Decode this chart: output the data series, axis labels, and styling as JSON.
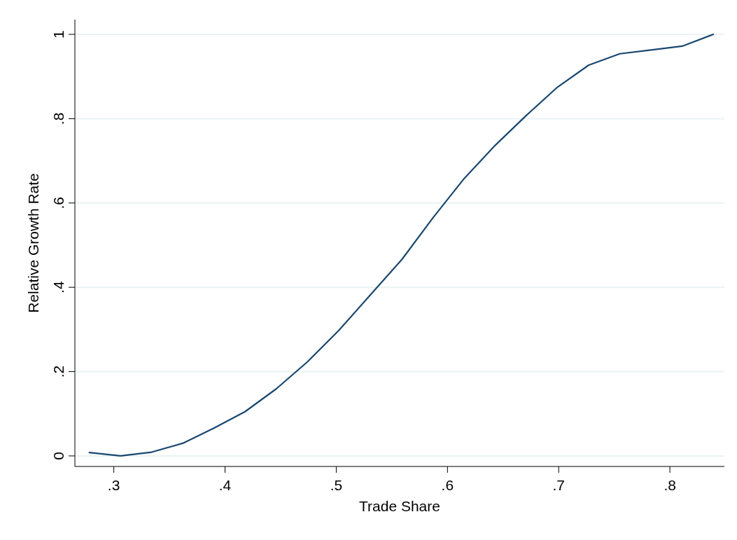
{
  "chart_data": {
    "type": "line",
    "xlabel": "Trade Share",
    "ylabel": "Relative Growth Rate",
    "x": [
      0.278,
      0.306,
      0.334,
      0.362,
      0.39,
      0.418,
      0.446,
      0.474,
      0.502,
      0.53,
      0.559,
      0.587,
      0.615,
      0.643,
      0.671,
      0.699,
      0.727,
      0.755,
      0.783,
      0.811,
      0.839
    ],
    "series": [
      {
        "color": "#1a476f",
        "values": [
          0.008,
          0,
          0.009,
          0.03,
          0.066,
          0.105,
          0.159,
          0.223,
          0.297,
          0.38,
          0.466,
          0.565,
          0.658,
          0.737,
          0.808,
          0.875,
          0.927,
          0.954,
          0.963,
          0.972,
          1
        ]
      }
    ],
    "xlim": [
      0.265,
      0.849
    ],
    "ylim": [
      -0.025,
      1.035
    ],
    "xticks": [
      {
        "value": 0.3,
        "label": ".3"
      },
      {
        "value": 0.4,
        "label": ".4"
      },
      {
        "value": 0.5,
        "label": ".5"
      },
      {
        "value": 0.6,
        "label": ".6"
      },
      {
        "value": 0.7,
        "label": ".7"
      },
      {
        "value": 0.8,
        "label": ".8"
      }
    ],
    "yticks": [
      0,
      {
        "value": 0.2,
        "label": ".2"
      },
      {
        "value": 0.4,
        "label": ".4"
      },
      {
        "value": 0.6,
        "label": ".6"
      },
      {
        "value": 0.8,
        "label": ".8"
      },
      1
    ],
    "grid": "y",
    "marker": "none",
    "line_style": "solid"
  }
}
